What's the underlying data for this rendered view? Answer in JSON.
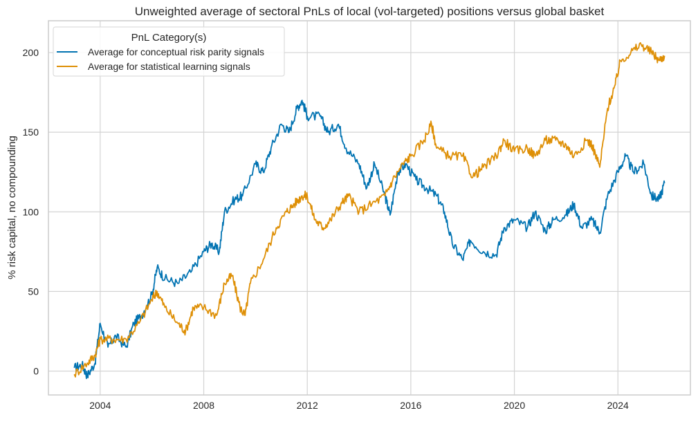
{
  "chart_data": {
    "type": "line",
    "title": "Unweighted average of sectoral PnLs of local (vol-targeted) positions versus global basket",
    "xlabel": "",
    "ylabel": "% risk capital, no compounding",
    "xlim": [
      2002.0,
      2026.8
    ],
    "ylim": [
      -15,
      220
    ],
    "x_ticks": [
      2004,
      2008,
      2012,
      2016,
      2020,
      2024
    ],
    "y_ticks": [
      0,
      50,
      100,
      150,
      200
    ],
    "grid": true,
    "legend": {
      "title": "PnL Category(s)",
      "placement": "top-left"
    },
    "series": [
      {
        "name": "Average for conceptual risk parity signals",
        "color": "#0173b2",
        "x": [
          2003.0,
          2003.3,
          2003.5,
          2003.8,
          2004.0,
          2004.3,
          2004.6,
          2005.0,
          2005.3,
          2005.6,
          2006.0,
          2006.2,
          2006.5,
          2007.0,
          2007.5,
          2008.0,
          2008.3,
          2008.6,
          2008.8,
          2009.2,
          2009.5,
          2010.0,
          2010.3,
          2010.6,
          2011.0,
          2011.3,
          2011.6,
          2011.8,
          2012.0,
          2012.5,
          2012.8,
          2013.2,
          2013.5,
          2014.0,
          2014.3,
          2014.6,
          2015.0,
          2015.2,
          2015.5,
          2015.8,
          2016.2,
          2016.6,
          2017.0,
          2017.3,
          2017.6,
          2018.0,
          2018.3,
          2018.8,
          2019.3,
          2019.6,
          2020.0,
          2020.5,
          2020.8,
          2021.2,
          2021.5,
          2022.0,
          2022.3,
          2022.6,
          2023.0,
          2023.3,
          2023.6,
          2024.0,
          2024.3,
          2024.6,
          2025.0,
          2025.3,
          2025.6,
          2025.8
        ],
        "y": [
          2,
          4,
          -3,
          5,
          30,
          15,
          22,
          15,
          30,
          35,
          48,
          65,
          58,
          55,
          62,
          75,
          80,
          75,
          100,
          108,
          110,
          130,
          125,
          140,
          155,
          150,
          165,
          170,
          160,
          160,
          150,
          155,
          140,
          130,
          115,
          130,
          110,
          98,
          125,
          130,
          120,
          115,
          110,
          100,
          80,
          70,
          82,
          75,
          73,
          90,
          95,
          90,
          100,
          88,
          95,
          98,
          105,
          90,
          95,
          87,
          110,
          125,
          135,
          125,
          130,
          110,
          108,
          118
        ]
      },
      {
        "name": "Average for statistical learning signals",
        "color": "#de8f05",
        "x": [
          2003.0,
          2003.5,
          2003.8,
          2004.0,
          2004.5,
          2005.0,
          2005.5,
          2006.0,
          2006.2,
          2006.5,
          2007.0,
          2007.3,
          2007.6,
          2008.0,
          2008.5,
          2008.8,
          2009.1,
          2009.4,
          2009.6,
          2009.8,
          2010.3,
          2010.8,
          2011.2,
          2011.5,
          2011.8,
          2012.0,
          2012.3,
          2012.6,
          2012.9,
          2013.3,
          2013.6,
          2014.0,
          2014.5,
          2015.0,
          2015.3,
          2015.7,
          2016.0,
          2016.5,
          2016.8,
          2017.0,
          2017.5,
          2018.0,
          2018.4,
          2018.8,
          2019.3,
          2019.6,
          2020.0,
          2020.5,
          2020.8,
          2021.2,
          2021.6,
          2022.0,
          2022.3,
          2022.8,
          2023.0,
          2023.3,
          2023.6,
          2023.9,
          2024.1,
          2024.5,
          2024.9,
          2025.3,
          2025.6,
          2025.8
        ],
        "y": [
          -2,
          5,
          10,
          20,
          20,
          20,
          30,
          45,
          50,
          40,
          30,
          25,
          40,
          40,
          35,
          55,
          60,
          40,
          35,
          55,
          70,
          90,
          100,
          105,
          110,
          110,
          95,
          90,
          95,
          105,
          110,
          100,
          105,
          110,
          120,
          130,
          135,
          145,
          155,
          140,
          135,
          135,
          122,
          128,
          135,
          145,
          138,
          140,
          135,
          145,
          145,
          142,
          135,
          145,
          142,
          128,
          165,
          180,
          195,
          200,
          205,
          200,
          195,
          198
        ]
      }
    ]
  }
}
